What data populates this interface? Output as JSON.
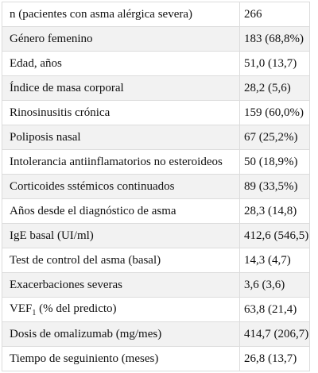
{
  "table": {
    "rows": [
      {
        "label": "n (pacientes con asma alérgica severa)",
        "value": "266"
      },
      {
        "label": "Género femenino",
        "value": "183 (68,8%)"
      },
      {
        "label": "Edad, años",
        "value": "51,0 (13,7)"
      },
      {
        "label": "Índice de masa corporal",
        "value": "28,2 (5,6)"
      },
      {
        "label": "Rinosinusitis crónica",
        "value": "159 (60,0%)"
      },
      {
        "label": "Poliposis nasal",
        "value": "67 (25,2%)"
      },
      {
        "label": "Intolerancia antiinflamatorios no esteroideos",
        "value": "50 (18,9%)"
      },
      {
        "label": "Corticoides sstémicos continuados",
        "value": "89 (33,5%)"
      },
      {
        "label": "Años desde el diagnóstico de asma",
        "value": "28,3 (14,8)"
      },
      {
        "label": "IgE basal (UI/ml)",
        "value": "412,6 (546,5)"
      },
      {
        "label": "Test de control del asma (basal)",
        "value": "14,3 (4,7)"
      },
      {
        "label": "Exacerbaciones severas",
        "value": "3,6 (3,6)"
      },
      {
        "label": {
          "text": "VEF",
          "subscript": "1",
          "after": " (% del predicto)"
        },
        "value": "63,8 (21,4)"
      },
      {
        "label": "Dosis de omalizumab (mg/mes)",
        "value": "414,7 (206,7)"
      },
      {
        "label": "Tiempo de seguiniento (meses)",
        "value": "26,8 (13,7)"
      }
    ]
  }
}
